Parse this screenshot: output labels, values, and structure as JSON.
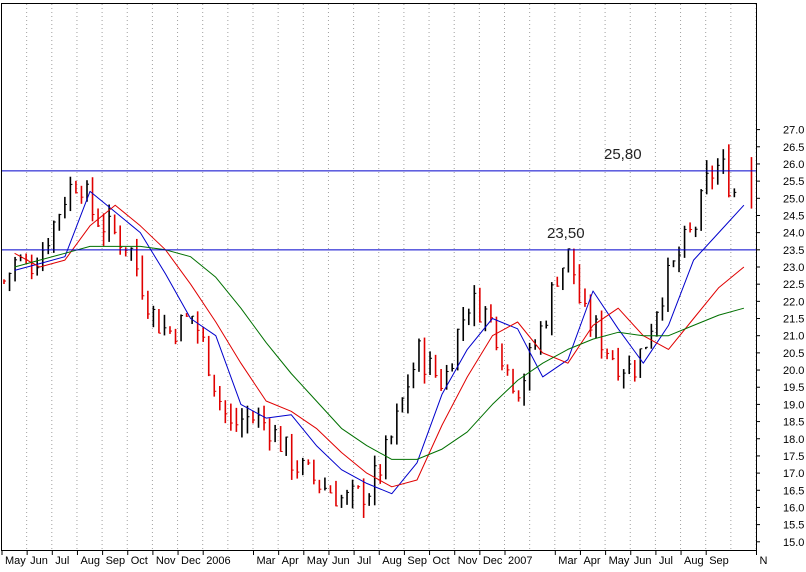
{
  "chart_data": {
    "type": "line",
    "chart_subtype": "ohlc-bar-with-moving-averages",
    "y_axis": {
      "side": "right",
      "range": [
        15.0,
        27.0
      ],
      "step": 0.5
    },
    "y_tick_labels": [
      "15.0",
      "15.5",
      "16.0",
      "16.5",
      "17.0",
      "17.5",
      "18.0",
      "18.5",
      "19.0",
      "19.5",
      "20.0",
      "20.5",
      "21.0",
      "21.5",
      "22.0",
      "22.5",
      "23.0",
      "23.5",
      "24.0",
      "24.5",
      "25.0",
      "25.5",
      "26.0",
      "26.5",
      "27.0"
    ],
    "x_tick_labels": [
      "May",
      "Jun",
      "Jul",
      "Aug",
      "Sep",
      "Oct",
      "Nov",
      "Dec",
      "2006",
      "Mar",
      "Apr",
      "May",
      "Jun",
      "Jul",
      "Aug",
      "Sep",
      "Oct",
      "Nov",
      "Dec",
      "2007",
      "Mar",
      "Apr",
      "May",
      "Jun",
      "Jul",
      "Aug",
      "Sep",
      "N"
    ],
    "x_month_index": [
      0,
      1,
      2,
      3,
      4,
      5,
      6,
      7,
      8,
      10,
      11,
      12,
      13,
      14,
      15,
      16,
      17,
      18,
      19,
      20,
      22,
      23,
      24,
      25,
      26,
      27,
      28,
      30
    ],
    "x_range_months": [
      0,
      30
    ],
    "grid": {
      "vertical_dotted": true,
      "horizontal": false
    },
    "horizontal_levels": [
      {
        "value": 25.8,
        "label": "25,80",
        "color": "#0000cc"
      },
      {
        "value": 23.5,
        "label": "23,50",
        "color": "#0000cc"
      }
    ],
    "colors": {
      "up_bar": "#000000",
      "down_bar": "#e00000",
      "ma_short": "#0000cc",
      "ma_mid": "#e00000",
      "ma_long": "#007000",
      "grid": "#a0a0a0"
    },
    "series": [
      {
        "role": "price_close_approx",
        "x": [
          0,
          0.5,
          1,
          1.5,
          2,
          2.5,
          3,
          3.5,
          4,
          4.5,
          5,
          5.5,
          6,
          6.5,
          7,
          7.5,
          8,
          8.5,
          9,
          9.5,
          10,
          10.5,
          11,
          11.5,
          12,
          12.5,
          13,
          13.5,
          14,
          14.5,
          15,
          15.5,
          16,
          16.5,
          17,
          17.5,
          18,
          18.5,
          19,
          19.5,
          20,
          20.5,
          21,
          21.5,
          22,
          22.5,
          23,
          23.5,
          24,
          24.5,
          25,
          25.5,
          26,
          26.5,
          27,
          27.5,
          28,
          28.5,
          29
        ],
        "values": [
          22.6,
          23.2,
          23.0,
          23.5,
          24.3,
          25.2,
          25.6,
          24.6,
          24.2,
          23.9,
          23.6,
          22.5,
          21.5,
          21.1,
          21.3,
          21.6,
          20.6,
          19.3,
          18.3,
          18.6,
          18.6,
          18.4,
          17.9,
          17.3,
          17.0,
          16.7,
          16.5,
          16.2,
          16.3,
          16.5,
          17.2,
          18.2,
          19.5,
          20.5,
          20.0,
          19.6,
          21.0,
          22.0,
          21.8,
          21.3,
          20.0,
          19.5,
          20.5,
          21.5,
          22.8,
          23.4,
          21.6,
          21.2,
          20.6,
          20.2,
          20.0,
          20.8,
          22.0,
          22.8,
          23.6,
          24.2,
          25.6,
          26.0,
          25.2
        ]
      },
      {
        "role": "moving_average_short",
        "color": "#0000cc",
        "x": [
          0,
          1,
          2,
          3,
          4,
          5,
          6,
          7,
          8,
          9,
          10,
          11,
          12,
          13,
          14,
          15,
          16,
          17,
          18,
          19,
          20,
          21,
          22,
          23,
          24,
          25,
          26,
          27,
          28,
          29
        ],
        "values": [
          22.9,
          23.1,
          23.3,
          25.2,
          24.6,
          24.0,
          22.8,
          21.5,
          21.0,
          19.0,
          18.6,
          18.7,
          17.8,
          17.1,
          16.7,
          16.4,
          17.3,
          19.3,
          20.6,
          21.5,
          21.2,
          19.8,
          20.3,
          22.3,
          21.2,
          20.2,
          21.3,
          23.2,
          24.0,
          24.8
        ]
      },
      {
        "role": "moving_average_mid",
        "color": "#e00000",
        "x": [
          0,
          1,
          2,
          3,
          4,
          5,
          6,
          7,
          8,
          9,
          10,
          11,
          12,
          13,
          14,
          15,
          16,
          17,
          18,
          19,
          20,
          21,
          22,
          23,
          24,
          25,
          26,
          27,
          28,
          29
        ],
        "values": [
          23.4,
          23.0,
          23.2,
          24.2,
          24.8,
          24.2,
          23.5,
          22.5,
          21.4,
          20.2,
          19.1,
          18.8,
          18.3,
          17.6,
          17.0,
          16.6,
          16.8,
          18.4,
          19.8,
          21.0,
          21.4,
          20.5,
          20.2,
          21.3,
          21.8,
          21.0,
          20.6,
          21.5,
          22.4,
          23.0
        ]
      },
      {
        "role": "moving_average_long",
        "color": "#007000",
        "x": [
          0,
          1,
          2,
          3,
          4,
          5,
          6,
          7,
          8,
          9,
          10,
          11,
          12,
          13,
          14,
          15,
          16,
          17,
          18,
          19,
          20,
          21,
          22,
          23,
          24,
          25,
          26,
          27,
          28,
          29
        ],
        "values": [
          23.0,
          23.2,
          23.4,
          23.6,
          23.6,
          23.6,
          23.5,
          23.3,
          22.7,
          21.8,
          20.8,
          19.9,
          19.1,
          18.3,
          17.8,
          17.4,
          17.4,
          17.7,
          18.2,
          19.0,
          19.7,
          20.2,
          20.6,
          20.9,
          21.1,
          21.0,
          21.0,
          21.3,
          21.6,
          21.8
        ]
      }
    ],
    "annotations": [
      "25,80",
      "23,50"
    ]
  }
}
